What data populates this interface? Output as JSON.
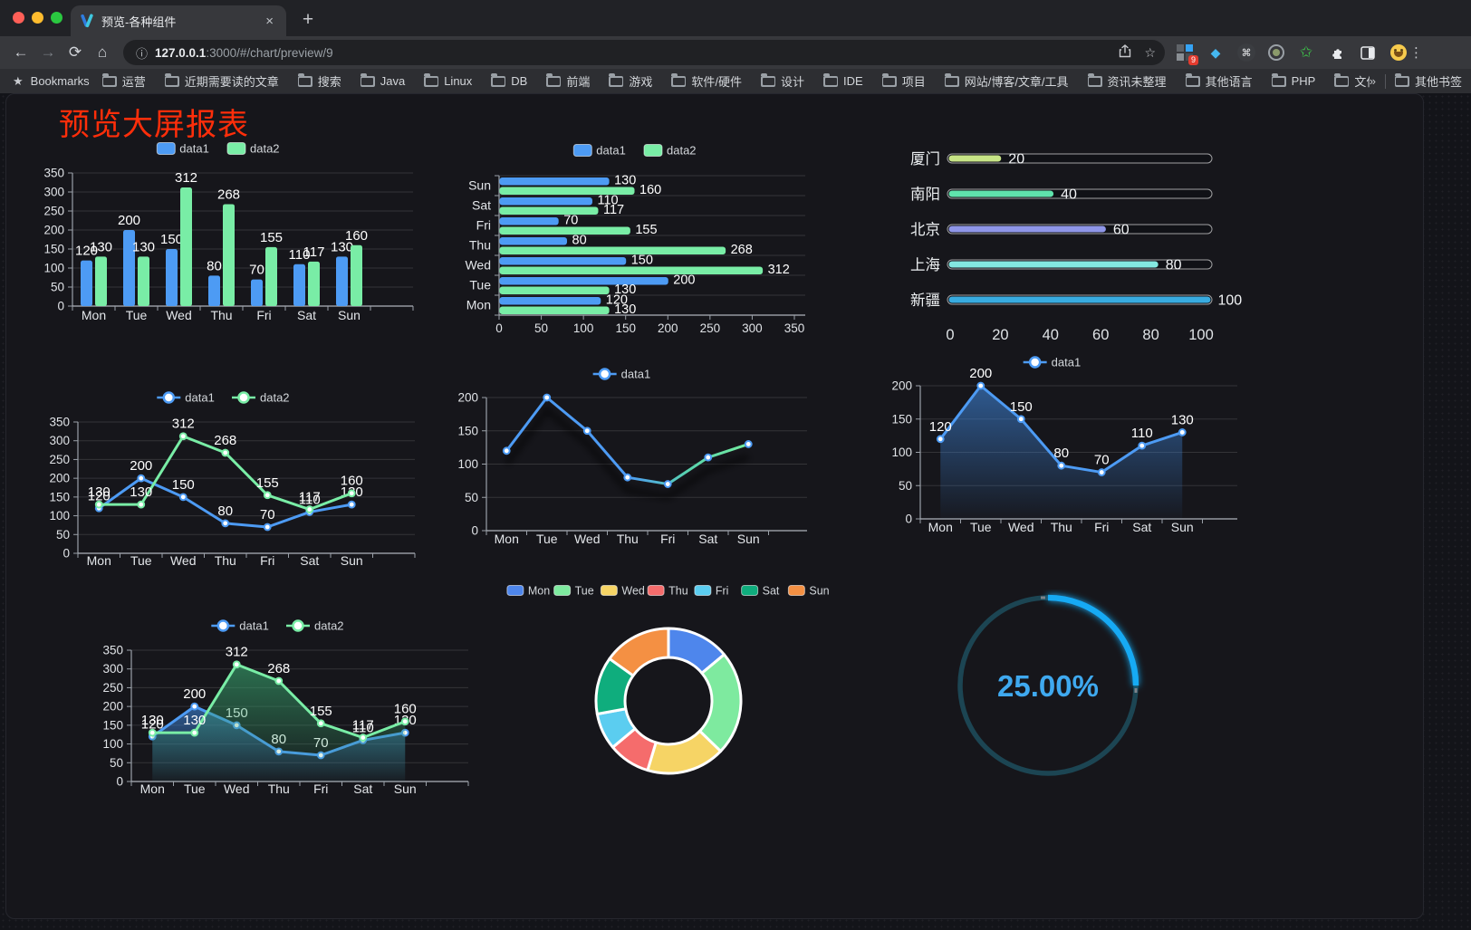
{
  "browser": {
    "tab_title": "预览-各种组件",
    "url_host": "127.0.0.1",
    "url_rest": ":3000/#/chart/preview/9",
    "bookmarks_label": "Bookmarks",
    "bookmarks": [
      "运营",
      "近期需要读的文章",
      "搜索",
      "Java",
      "Linux",
      "DB",
      "前端",
      "游戏",
      "软件/硬件",
      "设计",
      "IDE",
      "项目",
      "网站/博客/文章/工具",
      "资讯未整理",
      "其他语言",
      "PHP",
      "文件服务器"
    ],
    "overflow_chevron": "»",
    "other_bookmarks_label": "其他书签",
    "extension_badge": "9"
  },
  "page": {
    "title": "预览大屏报表",
    "title_color": "#ff2e0a",
    "background_color": "#16161b"
  },
  "chart_data": [
    {
      "type": "bar",
      "categories": [
        "Mon",
        "Tue",
        "Wed",
        "Thu",
        "Fri",
        "Sat",
        "Sun"
      ],
      "series": [
        {
          "name": "data1",
          "color": "#4d9bf4",
          "values": [
            120,
            200,
            150,
            80,
            70,
            110,
            130
          ]
        },
        {
          "name": "data2",
          "color": "#79eda6",
          "values": [
            130,
            130,
            312,
            268,
            155,
            117,
            160
          ]
        }
      ],
      "ylim": [
        0,
        350
      ],
      "ytick_step": 50,
      "value_labels": true,
      "legend_position": "top",
      "grid": true
    },
    {
      "type": "barh",
      "categories": [
        "Mon",
        "Tue",
        "Wed",
        "Thu",
        "Fri",
        "Sat",
        "Sun"
      ],
      "categories_displayed_top_to_bottom": [
        "Sun",
        "Sat",
        "Fri",
        "Thu",
        "Wed",
        "Tue",
        "Mon"
      ],
      "series": [
        {
          "name": "data1",
          "color": "#4d9bf4",
          "values": [
            120,
            200,
            150,
            80,
            70,
            110,
            130
          ]
        },
        {
          "name": "data2",
          "color": "#79eda6",
          "values": [
            130,
            130,
            312,
            268,
            155,
            117,
            160
          ]
        }
      ],
      "xlim": [
        0,
        350
      ],
      "xtick_step": 50,
      "value_labels": true,
      "legend_position": "top",
      "grid": true
    },
    {
      "type": "progress",
      "items": [
        {
          "label": "厦门",
          "value": 20,
          "color": "#c7e486"
        },
        {
          "label": "南阳",
          "value": 40,
          "color": "#5fe3ac"
        },
        {
          "label": "北京",
          "value": 60,
          "color": "#8f96e8"
        },
        {
          "label": "上海",
          "value": 80,
          "color": "#83e8e0"
        },
        {
          "label": "新疆",
          "value": 100,
          "color": "#38abe0"
        }
      ],
      "max": 100,
      "xticks": [
        0,
        20,
        40,
        60,
        80,
        100
      ]
    },
    {
      "type": "line",
      "categories": [
        "Mon",
        "Tue",
        "Wed",
        "Thu",
        "Fri",
        "Sat",
        "Sun"
      ],
      "series": [
        {
          "name": "data1",
          "color": "#4d9bf4",
          "values": [
            120,
            200,
            150,
            80,
            70,
            110,
            130
          ]
        },
        {
          "name": "data2",
          "color": "#79eda6",
          "values": [
            130,
            130,
            312,
            268,
            155,
            117,
            160
          ]
        }
      ],
      "ylim": [
        0,
        350
      ],
      "ytick_step": 50,
      "value_labels": true,
      "legend_position": "top",
      "markers": true
    },
    {
      "type": "line",
      "categories": [
        "Mon",
        "Tue",
        "Wed",
        "Thu",
        "Fri",
        "Sat",
        "Sun"
      ],
      "series": [
        {
          "name": "data1",
          "gradient": [
            "#4d9bf4",
            "#4d9bf4",
            "#4d9bf4",
            "#58d3ae",
            "#74eda0"
          ],
          "color": "#4d9bf4",
          "values": [
            120,
            200,
            150,
            80,
            70,
            110,
            130
          ]
        }
      ],
      "ylim": [
        0,
        200
      ],
      "ytick_step": 50,
      "value_labels": false,
      "legend_position": "top",
      "markers": true,
      "shadow": true
    },
    {
      "type": "area",
      "categories": [
        "Mon",
        "Tue",
        "Wed",
        "Thu",
        "Fri",
        "Sat",
        "Sun"
      ],
      "series": [
        {
          "name": "data1",
          "color": "#4d9bf4",
          "area_color": "#3c7fd0",
          "values": [
            120,
            200,
            150,
            80,
            70,
            110,
            130
          ]
        }
      ],
      "ylim": [
        0,
        200
      ],
      "ytick_step": 50,
      "value_labels": true,
      "legend_position": "top",
      "markers": true
    },
    {
      "type": "area",
      "categories": [
        "Mon",
        "Tue",
        "Wed",
        "Thu",
        "Fri",
        "Sat",
        "Sun"
      ],
      "series": [
        {
          "name": "data1",
          "color": "#4d9bf4",
          "area_color": "#3c7fd0",
          "values": [
            120,
            200,
            150,
            80,
            70,
            110,
            130
          ]
        },
        {
          "name": "data2",
          "color": "#79eda6",
          "area_color": "#37a06b",
          "values": [
            130,
            130,
            312,
            268,
            155,
            117,
            160
          ]
        }
      ],
      "ylim": [
        0,
        350
      ],
      "ytick_step": 50,
      "value_labels": true,
      "legend_position": "top",
      "markers": true
    },
    {
      "type": "donut",
      "categories": [
        "Mon",
        "Tue",
        "Wed",
        "Thu",
        "Fri",
        "Sat",
        "Sun"
      ],
      "values": [
        120,
        200,
        150,
        80,
        70,
        110,
        130
      ],
      "colors": [
        "#4e86ec",
        "#7eea9f",
        "#f6d465",
        "#f56c6c",
        "#5bcdf0",
        "#0fad7d",
        "#f49043"
      ],
      "legend_position": "top",
      "start_angle": 90,
      "inner_radius_ratio": 0.6
    },
    {
      "type": "gauge",
      "value": 25,
      "display": "25.00%",
      "color": "#18aaf4",
      "track_color": "#1c4553",
      "text_color": "#3fa9ef"
    }
  ]
}
